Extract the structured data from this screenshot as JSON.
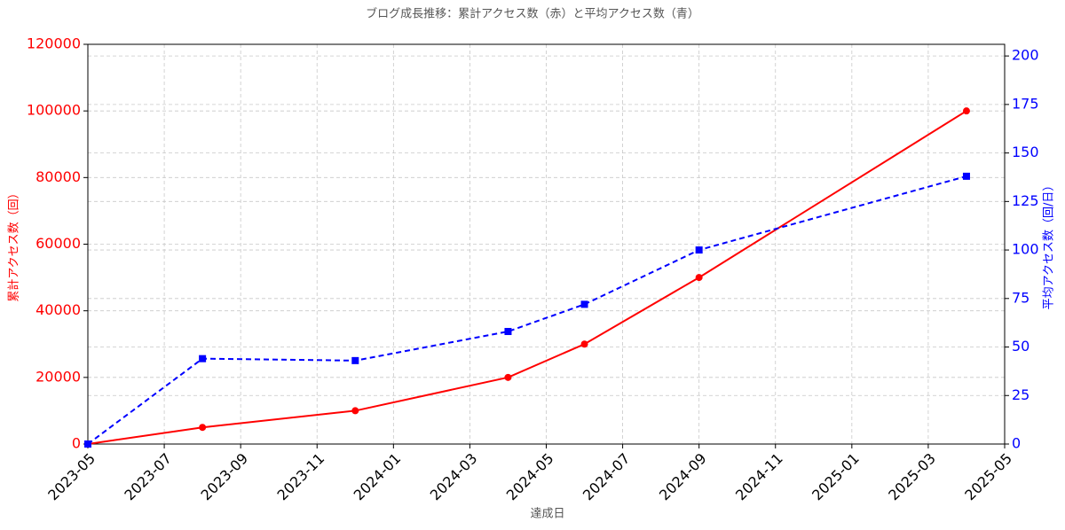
{
  "chart_data": {
    "type": "line",
    "title": "ブログ成長推移：累計アクセス数（赤）と平均アクセス数（青）",
    "x_label": "達成日",
    "y_label": "累計アクセス数（回）",
    "y2_label": "平均アクセス数（回/日）",
    "x": [
      "2023-05",
      "2023-08",
      "2023-12",
      "2024-04",
      "2024-06",
      "2024-09",
      "2025-04"
    ],
    "series": [
      {
        "color": "#ff0000",
        "marker": "circle",
        "dash": false,
        "values": [
          0,
          5000,
          10000,
          20000,
          30000,
          50000,
          100000
        ]
      },
      {
        "color": "#0000ff",
        "marker": "square",
        "dash": true,
        "axis": "y2",
        "values": [
          0,
          44,
          43,
          58,
          72,
          100,
          138
        ]
      }
    ],
    "xlim": [
      "2023-05",
      "2025-05"
    ],
    "xticks": [
      "2023-05",
      "2023-07",
      "2023-09",
      "2023-11",
      "2024-01",
      "2024-03",
      "2024-05",
      "2024-07",
      "2024-09",
      "2024-11",
      "2025-01",
      "2025-03",
      "2025-05"
    ],
    "ylim": [
      0,
      120000
    ],
    "yticks": [
      0,
      20000,
      40000,
      60000,
      80000,
      100000,
      120000
    ],
    "y2lim": [
      0,
      206
    ],
    "y2ticks": [
      0,
      25,
      50,
      75,
      100,
      125,
      150,
      175,
      200
    ],
    "grid": true
  }
}
